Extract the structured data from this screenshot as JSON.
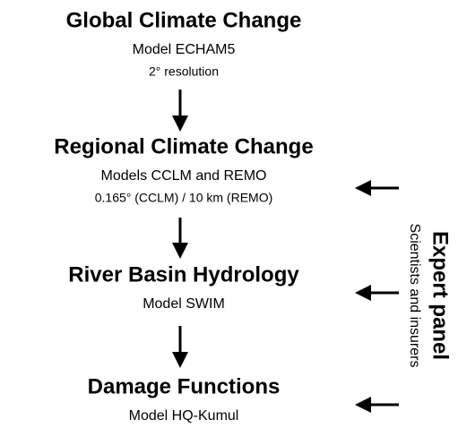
{
  "nodes": [
    {
      "title": "Global Climate Change",
      "details": [
        "Model ECHAM5",
        "2° resolution"
      ]
    },
    {
      "title": "Regional Climate Change",
      "details": [
        "Models CCLM and REMO",
        "0.165° (CCLM) / 10 km (REMO)"
      ]
    },
    {
      "title": "River Basin Hydrology",
      "details": [
        "Model SWIM"
      ]
    },
    {
      "title": "Damage Functions",
      "details": [
        "Model HQ-Kumul"
      ]
    }
  ],
  "expert_panel": {
    "title": "Expert panel",
    "subtitle": "Scientists and insurers"
  }
}
